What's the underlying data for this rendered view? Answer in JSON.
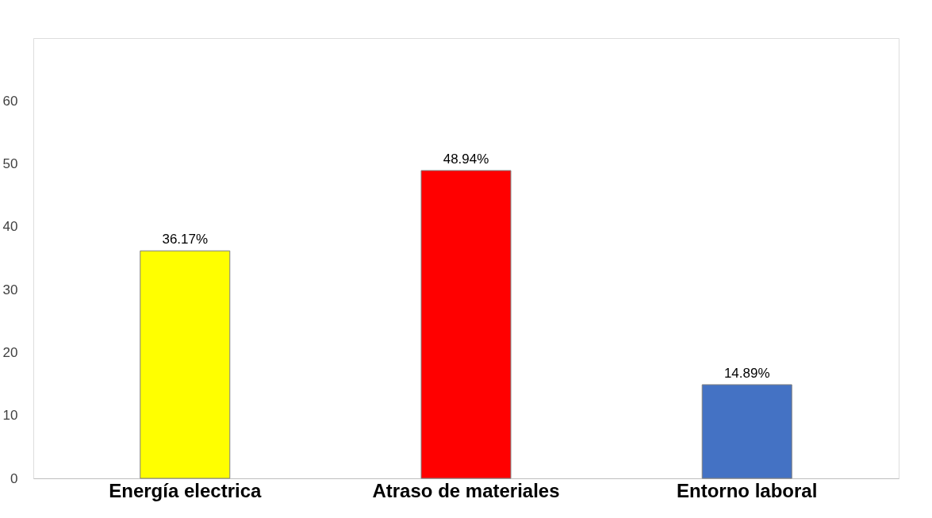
{
  "chart_data": {
    "type": "bar",
    "categories": [
      "Energía electrica",
      "Atraso de materiales",
      "Entorno laboral"
    ],
    "values": [
      36.17,
      48.94,
      14.89
    ],
    "colors": [
      "#ffff00",
      "#ff0000",
      "#4472c4"
    ],
    "value_labels": [
      "36.17%",
      "48.94%",
      "14.89%"
    ],
    "ylim": [
      0,
      70
    ],
    "yticks": [
      0,
      10,
      20,
      30,
      40,
      50,
      60
    ],
    "grid": false
  }
}
